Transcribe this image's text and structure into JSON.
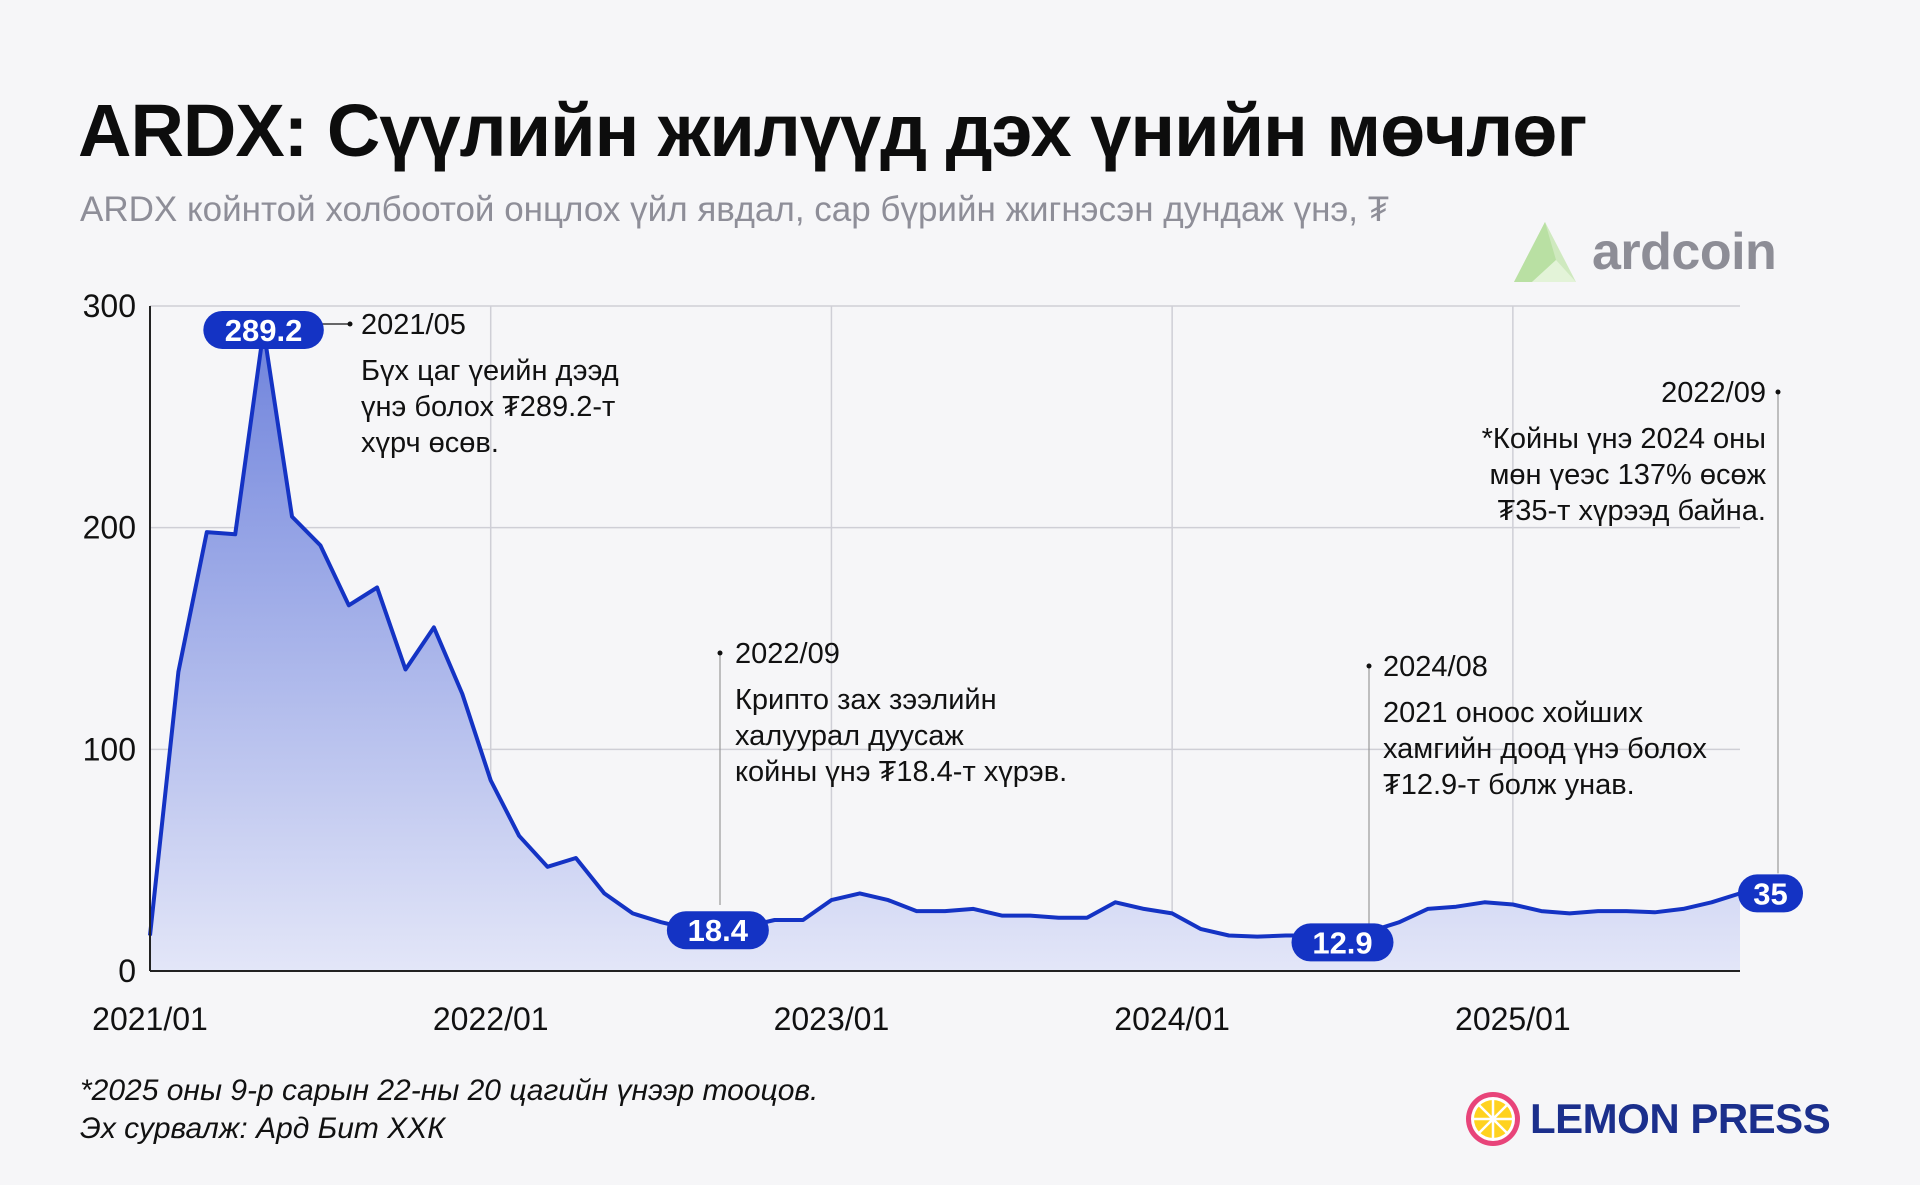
{
  "header": {
    "title": "ARDX: Сүүлийн жилүүд дэх үнийн мөчлөг",
    "subtitle": "ARDX койнтой холбоотой онцлох үйл явдал, сар бүрийн жигнэсэн дундаж үнэ, ₮"
  },
  "brand": {
    "name": "ardcoin",
    "icon": "ardcoin-logo-icon"
  },
  "footer": {
    "note": "*2025 оны 9-р сарын 22-ны 20 цагийн үнээр тооцов.",
    "source": "Эх сурвалж: Ард Бит ХХК",
    "publisher": "LEMON PRESS",
    "publisher_icon": "lemon-slice-icon"
  },
  "colors": {
    "line": "#1433c4",
    "fill_top": "#6f83dc",
    "fill_bottom": "#e3e6f8",
    "badge": "#1433c4",
    "grid": "#cfcfd6",
    "brand_green": "#c8e8b5",
    "brand_grey": "#8d8d96",
    "publisher_navy": "#1b2f8c",
    "lemon_pink": "#e8447a",
    "lemon_yellow": "#ffd21f"
  },
  "chart_data": {
    "type": "area",
    "ylim": [
      0,
      300
    ],
    "yticks": [
      "0",
      "100",
      "200",
      "300"
    ],
    "x_tick_labels": [
      "2021/01",
      "2022/01",
      "2023/01",
      "2024/01",
      "2025/01"
    ],
    "series": [
      {
        "x": [
          "2021/01",
          "2021/02",
          "2021/03",
          "2021/04",
          "2021/05",
          "2021/06",
          "2021/07",
          "2021/08",
          "2021/09",
          "2021/10",
          "2021/11",
          "2021/12",
          "2022/01",
          "2022/02",
          "2022/03",
          "2022/04",
          "2022/05",
          "2022/06",
          "2022/07",
          "2022/08",
          "2022/09",
          "2022/10",
          "2022/11",
          "2022/12",
          "2023/01",
          "2023/02",
          "2023/03",
          "2023/04",
          "2023/05",
          "2023/06",
          "2023/07",
          "2023/08",
          "2023/09",
          "2023/10",
          "2023/11",
          "2023/12",
          "2024/01",
          "2024/02",
          "2024/03",
          "2024/04",
          "2024/05",
          "2024/06",
          "2024/07",
          "2024/08",
          "2024/09",
          "2024/10",
          "2024/11",
          "2024/12",
          "2025/01",
          "2025/02",
          "2025/03",
          "2025/04",
          "2025/05",
          "2025/06",
          "2025/07",
          "2025/08",
          "2025/09"
        ],
        "values": [
          16,
          135,
          198,
          197,
          289.2,
          205,
          192,
          165,
          173,
          136,
          155,
          125,
          86,
          61,
          47,
          51,
          35,
          26,
          22,
          19,
          18.4,
          20,
          23,
          23,
          32,
          35,
          32,
          27,
          27,
          28,
          25,
          25,
          24,
          24,
          31,
          28,
          26,
          19,
          16,
          15.5,
          16,
          16,
          12.9,
          18,
          22,
          28,
          29,
          31,
          30,
          27,
          26,
          27,
          27,
          26.5,
          28,
          31,
          35
        ]
      }
    ],
    "badges": [
      {
        "x": "2021/05",
        "label": "289.2"
      },
      {
        "x": "2022/09",
        "label": "18.4"
      },
      {
        "x": "2024/07",
        "label": "12.9"
      },
      {
        "x": "2025/09",
        "label": "35"
      }
    ],
    "annotations": [
      {
        "date": "2021/05",
        "lines": [
          "Бүх цаг үеийн дээд",
          "үнэ болох ₮289.2-т",
          "хүрч өсөв."
        ]
      },
      {
        "date": "2022/09",
        "lines": [
          "Крипто зах зээлийн",
          "халуурал дуусаж",
          "койны үнэ ₮18.4-т хүрэв."
        ]
      },
      {
        "date": "2024/08",
        "lines": [
          "2021 оноос хойших",
          "хамгийн доод үнэ болох",
          "₮12.9-т болж унав."
        ]
      },
      {
        "date": "2022/09",
        "lines": [
          "*Койны үнэ 2024 оны",
          "мөн үеэс 137% өсөж",
          "₮35-т хүрээд байна."
        ]
      }
    ]
  }
}
